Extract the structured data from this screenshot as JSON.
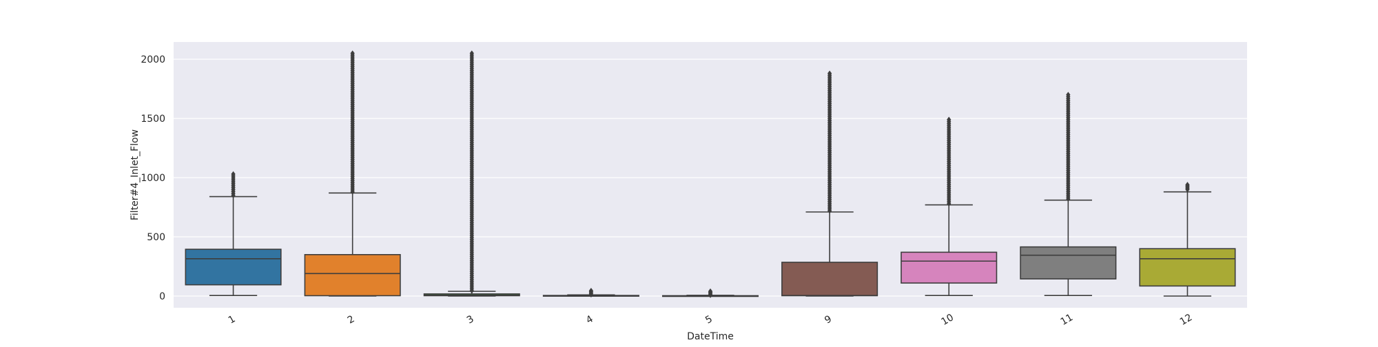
{
  "chart_data": {
    "type": "box",
    "title": "",
    "xlabel": "DateTime",
    "ylabel": "Filter#4_Inlet_Flow",
    "ylim": [
      -100,
      2150
    ],
    "yticks": [
      0,
      500,
      1000,
      1500,
      2000
    ],
    "grid": true,
    "categories": [
      "1",
      "2",
      "3",
      "4",
      "5",
      "9",
      "10",
      "11",
      "12"
    ],
    "boxes": [
      {
        "category": "1",
        "color": "#3274a1",
        "q1": 95,
        "median": 315,
        "q3": 395,
        "whisker_low": 5,
        "whisker_high": 840,
        "outlier_min": 850,
        "outlier_max": 1030
      },
      {
        "category": "2",
        "color": "#e1812c",
        "q1": 3,
        "median": 190,
        "q3": 350,
        "whisker_low": 0,
        "whisker_high": 870,
        "outlier_min": 880,
        "outlier_max": 2050
      },
      {
        "category": "3",
        "color": "#3a923a",
        "q1": 3,
        "median": 8,
        "q3": 18,
        "whisker_low": 0,
        "whisker_high": 40,
        "outlier_min": 45,
        "outlier_max": 2050
      },
      {
        "category": "4",
        "color": "#c03d3e",
        "q1": 0,
        "median": 2,
        "q3": 5,
        "whisker_low": 0,
        "whisker_high": 10,
        "outlier_min": 12,
        "outlier_max": 45
      },
      {
        "category": "5",
        "color": "#9372b2",
        "q1": 0,
        "median": 1,
        "q3": 3,
        "whisker_low": 0,
        "whisker_high": 6,
        "outlier_min": 8,
        "outlier_max": 40
      },
      {
        "category": "9",
        "color": "#845b53",
        "q1": 3,
        "median": 5,
        "q3": 285,
        "whisker_low": 0,
        "whisker_high": 710,
        "outlier_min": 720,
        "outlier_max": 1880
      },
      {
        "category": "10",
        "color": "#d684bd",
        "q1": 110,
        "median": 295,
        "q3": 370,
        "whisker_low": 5,
        "whisker_high": 770,
        "outlier_min": 780,
        "outlier_max": 1490
      },
      {
        "category": "11",
        "color": "#7f7f7f",
        "q1": 145,
        "median": 345,
        "q3": 415,
        "whisker_low": 5,
        "whisker_high": 810,
        "outlier_min": 820,
        "outlier_max": 1700
      },
      {
        "category": "12",
        "color": "#a9aa35",
        "q1": 85,
        "median": 315,
        "q3": 400,
        "whisker_low": 0,
        "whisker_high": 880,
        "outlier_min": 900,
        "outlier_max": 940
      }
    ]
  }
}
